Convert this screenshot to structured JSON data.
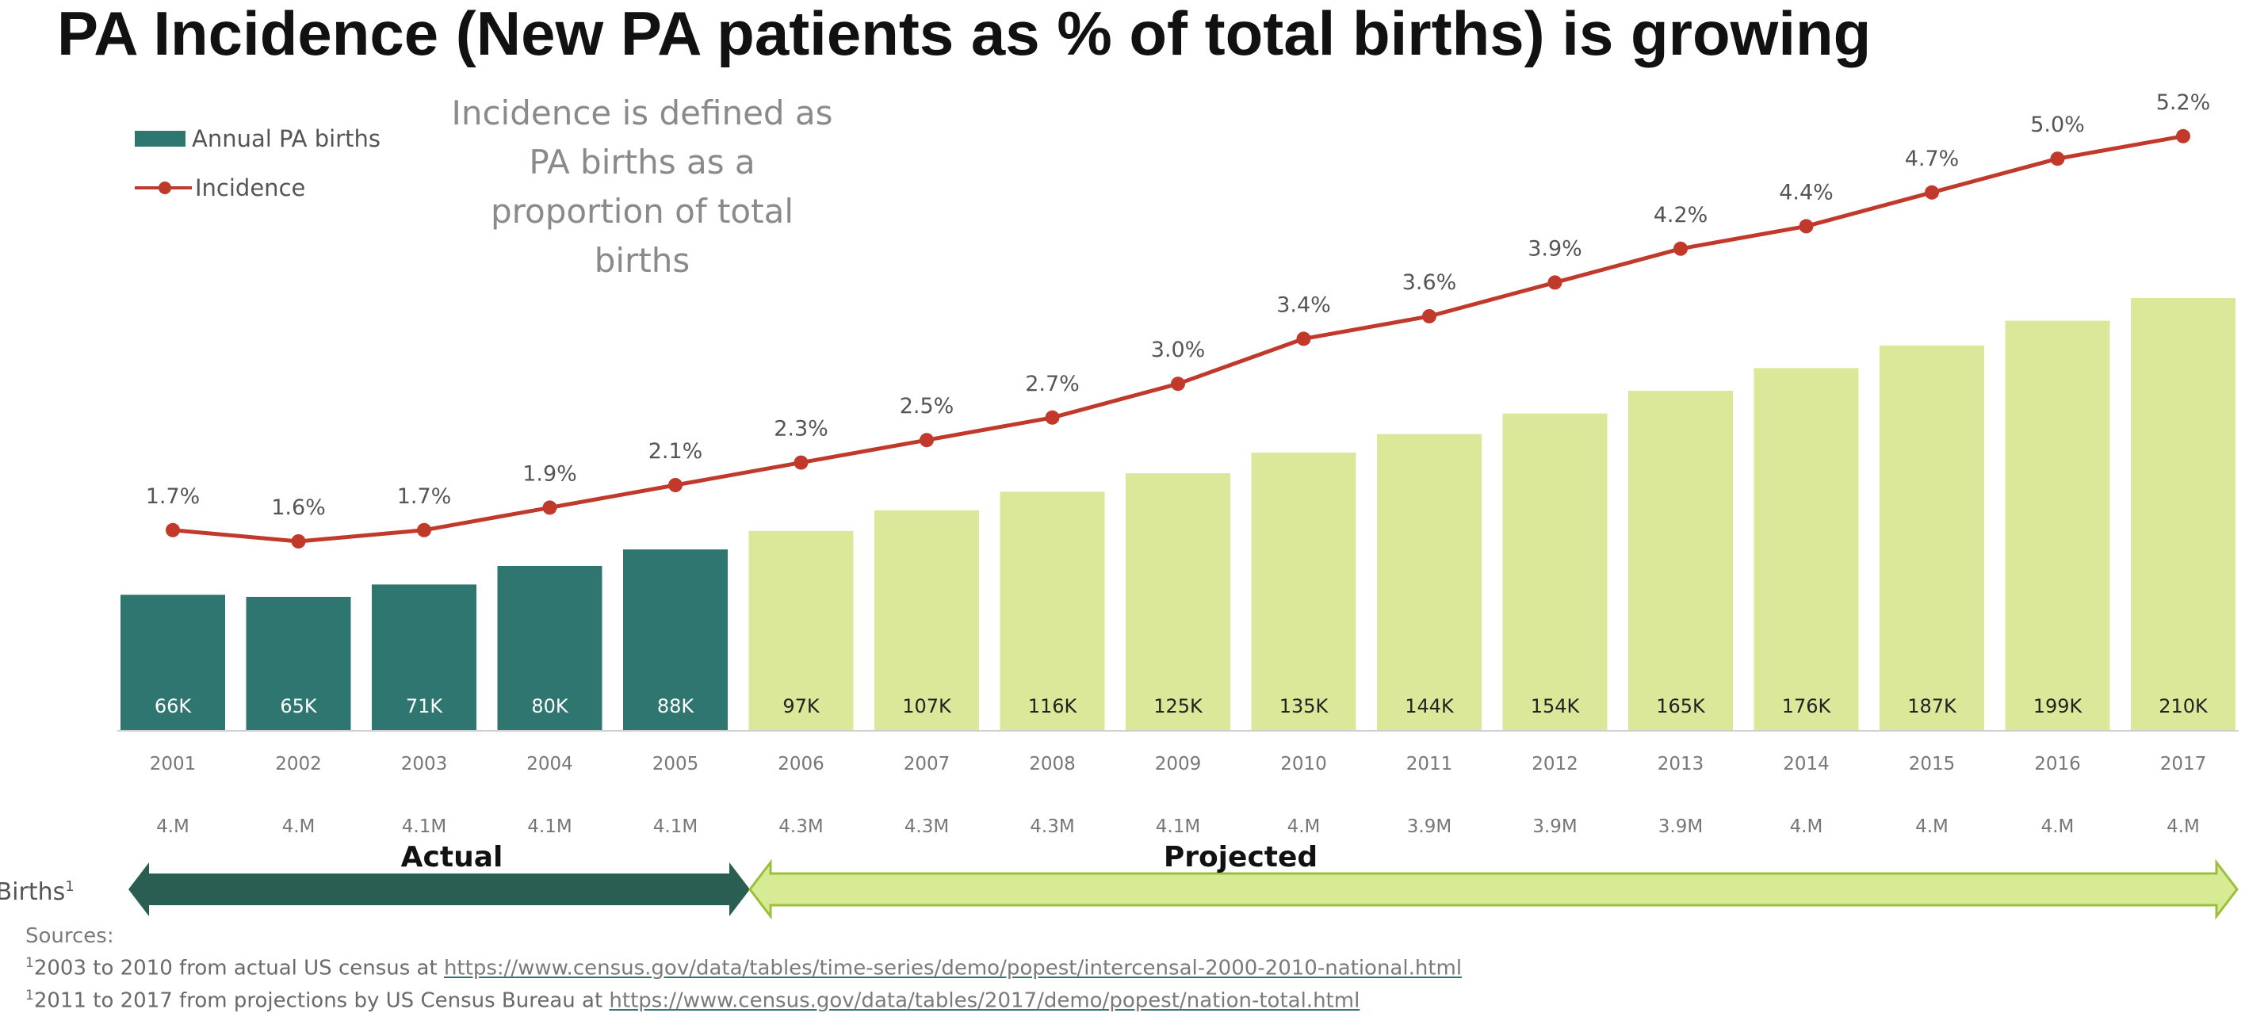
{
  "title": "PA Incidence (New PA patients as % of total births) is growing",
  "subtitle": "Incidence is defined as PA births as a proportion of total births",
  "legend": {
    "bars_label": "Annual PA births",
    "line_label": "Incidence"
  },
  "row_label": "S Births",
  "row_label_sup": "1",
  "colors": {
    "actual": "#2f7570",
    "projected": "#dbe89a",
    "line": "#c0392b",
    "actual_arrow": "#2b5e52",
    "projected_arrow": "#d7eb95"
  },
  "chart_data": {
    "type": "bar",
    "categories": [
      "2001",
      "2002",
      "2003",
      "2004",
      "2005",
      "2006",
      "2007",
      "2008",
      "2009",
      "2010",
      "2011",
      "2012",
      "2013",
      "2014",
      "2015",
      "2016",
      "2017"
    ],
    "series": [
      {
        "name": "Annual PA births",
        "type": "bar",
        "values": [
          66,
          65,
          71,
          80,
          88,
          97,
          107,
          116,
          125,
          135,
          144,
          154,
          165,
          176,
          187,
          199,
          210
        ],
        "labels": [
          "66K",
          "65K",
          "71K",
          "80K",
          "88K",
          "97K",
          "107K",
          "116K",
          "125K",
          "135K",
          "144K",
          "154K",
          "165K",
          "176K",
          "187K",
          "199K",
          "210K"
        ],
        "unit": "K",
        "actual_count": 5
      },
      {
        "name": "Incidence",
        "type": "line",
        "values": [
          1.7,
          1.6,
          1.7,
          1.9,
          2.1,
          2.3,
          2.5,
          2.7,
          3.0,
          3.4,
          3.6,
          3.9,
          4.2,
          4.4,
          4.7,
          5.0,
          5.2
        ],
        "labels": [
          "1.7%",
          "1.6%",
          "1.7%",
          "1.9%",
          "2.1%",
          "2.3%",
          "2.5%",
          "2.7%",
          "3.0%",
          "3.4%",
          "3.6%",
          "3.9%",
          "4.2%",
          "4.4%",
          "4.7%",
          "5.0%",
          "5.2%"
        ]
      }
    ],
    "total_births": [
      "4.M",
      "4.M",
      "4.1M",
      "4.1M",
      "4.1M",
      "4.3M",
      "4.3M",
      "4.3M",
      "4.1M",
      "4.M",
      "3.9M",
      "3.9M",
      "3.9M",
      "4.M",
      "4.M",
      "4.M",
      "4.M"
    ],
    "periods": [
      {
        "label": "Actual",
        "range": [
          "2001",
          "2005"
        ]
      },
      {
        "label": "Projected",
        "range": [
          "2006",
          "2017"
        ]
      }
    ],
    "grid": false,
    "legend_position": "top-left"
  },
  "sources": {
    "heading": "Sources:",
    "lines": [
      {
        "sup": "1",
        "text": "2003 to 2010 from actual US census at ",
        "link": "https://www.census.gov/data/tables/time-series/demo/popest/intercensal-2000-2010-national.html"
      },
      {
        "sup": "1",
        "text": "2011 to 2017 from projections by US Census Bureau at ",
        "link": "https://www.census.gov/data/tables/2017/demo/popest/nation-total.html"
      }
    ]
  }
}
